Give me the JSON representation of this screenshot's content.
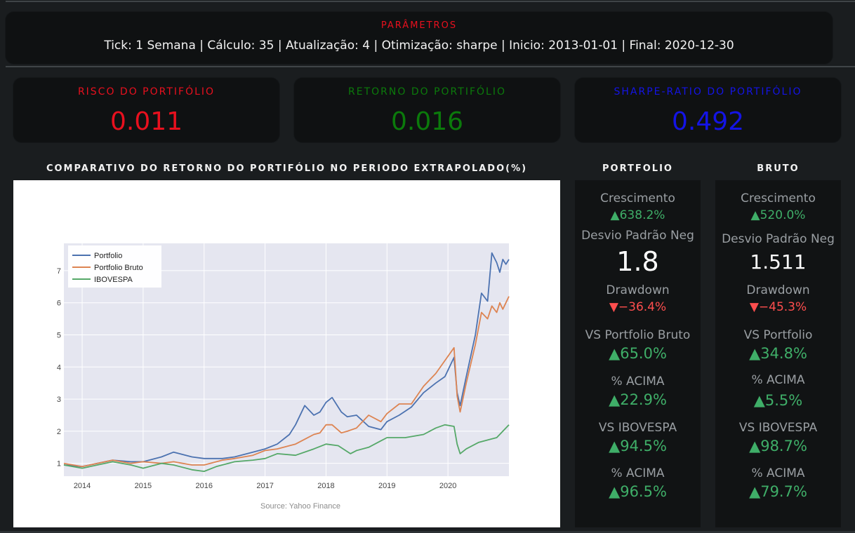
{
  "params": {
    "title": "PARÂMETROS",
    "text": "Tick: 1 Semana | Cálculo: 35 | Atualização: 4 | Otimização: sharpe | Inicio: 2013-01-01 | Final: 2020-12-30"
  },
  "kpis": [
    {
      "label": "RISCO DO PORTIFÓLIO",
      "value": "0.011",
      "color": "#e8101e"
    },
    {
      "label": "RETORNO DO PORTIFÓLIO",
      "value": "0.016",
      "color": "#0b7a0b"
    },
    {
      "label": "SHARPE-RATIO DO PORTIFÓLIO",
      "value": "0.492",
      "color": "#1414e6"
    }
  ],
  "chart_section": {
    "title": "COMPARATIVO DO RETORNO DO PORTIFÓLIO NO PERIODO EXTRAPOLADO(%)",
    "source": "Source: Yahoo Finance"
  },
  "chart_data": {
    "type": "line",
    "title": "",
    "xlabel": "",
    "ylabel": "",
    "x_ticks": [
      "2014",
      "2015",
      "2016",
      "2017",
      "2018",
      "2019",
      "2020"
    ],
    "y_ticks": [
      "1",
      "2",
      "3",
      "4",
      "5",
      "6",
      "7"
    ],
    "xlim": [
      2013.7,
      2021.0
    ],
    "ylim": [
      0.6,
      7.85
    ],
    "grid": true,
    "legend": "top-left",
    "series": [
      {
        "name": "Portfolio",
        "color": "#4c72b0",
        "x": [
          2013.7,
          2014.0,
          2014.5,
          2014.8,
          2015.0,
          2015.3,
          2015.5,
          2015.8,
          2016.0,
          2016.3,
          2016.5,
          2016.8,
          2017.0,
          2017.2,
          2017.4,
          2017.5,
          2017.65,
          2017.8,
          2017.9,
          2018.0,
          2018.1,
          2018.25,
          2018.35,
          2018.5,
          2018.7,
          2018.9,
          2019.0,
          2019.2,
          2019.4,
          2019.6,
          2019.8,
          2019.95,
          2020.1,
          2020.15,
          2020.2,
          2020.3,
          2020.45,
          2020.55,
          2020.65,
          2020.72,
          2020.8,
          2020.85,
          2020.9,
          2020.95,
          2021.0
        ],
        "y": [
          0.95,
          0.9,
          1.1,
          1.05,
          1.05,
          1.2,
          1.35,
          1.2,
          1.15,
          1.15,
          1.2,
          1.35,
          1.45,
          1.6,
          1.9,
          2.2,
          2.8,
          2.5,
          2.6,
          2.9,
          3.05,
          2.6,
          2.45,
          2.5,
          2.15,
          2.05,
          2.3,
          2.5,
          2.75,
          3.2,
          3.5,
          3.7,
          4.3,
          3.2,
          2.8,
          3.7,
          5.0,
          6.3,
          6.05,
          7.55,
          7.25,
          6.95,
          7.35,
          7.2,
          7.35
        ]
      },
      {
        "name": "Portfolio Bruto",
        "color": "#dd8452",
        "x": [
          2013.7,
          2014.0,
          2014.5,
          2014.8,
          2015.0,
          2015.3,
          2015.5,
          2015.8,
          2016.0,
          2016.3,
          2016.5,
          2016.8,
          2017.0,
          2017.2,
          2017.4,
          2017.5,
          2017.65,
          2017.8,
          2017.9,
          2018.0,
          2018.1,
          2018.25,
          2018.35,
          2018.5,
          2018.7,
          2018.9,
          2019.0,
          2019.2,
          2019.4,
          2019.6,
          2019.8,
          2019.95,
          2020.1,
          2020.15,
          2020.2,
          2020.3,
          2020.45,
          2020.55,
          2020.65,
          2020.72,
          2020.8,
          2020.85,
          2020.9,
          2020.95,
          2021.0
        ],
        "y": [
          1.0,
          0.9,
          1.1,
          1.0,
          1.05,
          1.0,
          1.05,
          0.95,
          0.95,
          1.1,
          1.15,
          1.25,
          1.4,
          1.45,
          1.55,
          1.6,
          1.75,
          1.9,
          1.95,
          2.2,
          2.2,
          1.95,
          2.0,
          2.1,
          2.5,
          2.3,
          2.55,
          2.85,
          2.85,
          3.4,
          3.8,
          4.2,
          4.6,
          3.1,
          2.6,
          3.5,
          4.7,
          5.7,
          5.5,
          5.9,
          5.7,
          6.0,
          5.8,
          6.0,
          6.2
        ]
      },
      {
        "name": "IBOVESPA",
        "color": "#55a868",
        "x": [
          2013.7,
          2014.0,
          2014.5,
          2014.8,
          2015.0,
          2015.3,
          2015.5,
          2015.8,
          2016.0,
          2016.2,
          2016.5,
          2016.8,
          2017.0,
          2017.2,
          2017.5,
          2017.8,
          2018.0,
          2018.2,
          2018.4,
          2018.5,
          2018.7,
          2018.9,
          2019.0,
          2019.3,
          2019.6,
          2019.8,
          2019.95,
          2020.1,
          2020.15,
          2020.2,
          2020.3,
          2020.5,
          2020.7,
          2020.8,
          2020.9,
          2021.0
        ],
        "y": [
          0.95,
          0.85,
          1.05,
          0.95,
          0.85,
          1.0,
          0.95,
          0.8,
          0.75,
          0.9,
          1.05,
          1.1,
          1.15,
          1.3,
          1.25,
          1.45,
          1.6,
          1.55,
          1.3,
          1.4,
          1.5,
          1.7,
          1.8,
          1.8,
          1.9,
          2.1,
          2.2,
          2.15,
          1.6,
          1.3,
          1.45,
          1.65,
          1.75,
          1.8,
          2.0,
          2.2
        ]
      }
    ]
  },
  "portfolio": {
    "title": "PORTFOLIO",
    "crescimento_label": "Crescimento",
    "crescimento_value": "▲638.2%",
    "desvio_label": "Desvio Padrão Neg",
    "desvio_value": "1.8",
    "drawdown_label": "Drawdown",
    "drawdown_value": "▼−36.4%",
    "vs1_label": "VS Portfolio Bruto",
    "vs1_value": "▲65.0%",
    "acima1_label": "% ACIMA",
    "acima1_value": "▲22.9%",
    "vs2_label": "VS IBOVESPA",
    "vs2_value": "▲94.5%",
    "acima2_label": "% ACIMA",
    "acima2_value": "▲96.5%"
  },
  "bruto": {
    "title": "BRUTO",
    "crescimento_label": "Crescimento",
    "crescimento_value": "▲520.0%",
    "desvio_label": "Desvio Padrão Neg",
    "desvio_value": "1.511",
    "drawdown_label": "Drawdown",
    "drawdown_value": "▼−45.3%",
    "vs1_label": "VS Portfolio",
    "vs1_value": "▲34.8%",
    "acima1_label": "% ACIMA",
    "acima1_value": "▲5.5%",
    "vs2_label": "VS IBOVESPA",
    "vs2_value": "▲98.7%",
    "acima2_label": "% ACIMA",
    "acima2_value": "▲79.7%"
  }
}
